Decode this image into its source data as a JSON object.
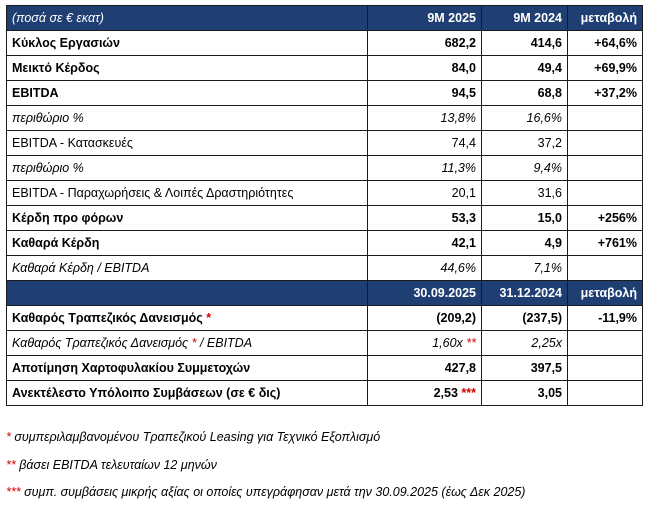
{
  "table1": {
    "header": {
      "label": "(ποσά σε € εκατ)",
      "col1": "9M 2025",
      "col2": "9M 2024",
      "col3": "μεταβολή"
    },
    "rows": [
      {
        "label": "Κύκλος Εργασιών",
        "v1": "682,2",
        "v2": "414,6",
        "chg": "+64,6%",
        "style": "bold"
      },
      {
        "label": "Μεικτό Κέρδος",
        "v1": "84,0",
        "v2": "49,4",
        "chg": "+69,9%",
        "style": "bold"
      },
      {
        "label": "EBITDA",
        "v1": "94,5",
        "v2": "68,8",
        "chg": "+37,2%",
        "style": "bold"
      },
      {
        "label": "περιθώριο %",
        "v1": "13,8%",
        "v2": "16,6%",
        "chg": "",
        "style": "ital"
      },
      {
        "label": "EBITDA - Κατασκευές",
        "v1": "74,4",
        "v2": "37,2",
        "chg": "",
        "style": "normal"
      },
      {
        "label": "περιθώριο %",
        "v1": "11,3%",
        "v2": "9,4%",
        "chg": "",
        "style": "ital"
      },
      {
        "label": "EBITDA - Παραχωρήσεις & Λοιπές Δραστηριότητες",
        "v1": "20,1",
        "v2": "31,6",
        "chg": "",
        "style": "normal"
      },
      {
        "label": "Κέρδη προ φόρων",
        "v1": "53,3",
        "v2": "15,0",
        "chg": "+256%",
        "style": "bold"
      },
      {
        "label": "Καθαρά Κέρδη",
        "v1": "42,1",
        "v2": "4,9",
        "chg": "+761%",
        "style": "bold"
      },
      {
        "label": "Καθαρά Κέρδη / EBITDA",
        "v1": "44,6%",
        "v2": "7,1%",
        "chg": "",
        "style": "ital"
      }
    ]
  },
  "table2": {
    "header": {
      "label": "",
      "col1": "30.09.2025",
      "col2": "31.12.2024",
      "col3": "μεταβολή"
    },
    "rows": [
      {
        "label": "Καθαρός Τραπεζικός Δανεισμός",
        "mark": " *",
        "v1": "(209,2)",
        "v1mark": "",
        "v2": "(237,5)",
        "chg": "-11,9%",
        "style": "bold"
      },
      {
        "label": "Καθαρός Τραπεζικός Δανεισμός",
        "mark": " *",
        "label_suffix": " / EBITDA",
        "v1": "1,60x",
        "v1mark": " **",
        "v2": "2,25x",
        "chg": "",
        "style": "ital"
      },
      {
        "label": "Αποτίμηση Χαρτοφυλακίου Συμμετοχών",
        "mark": "",
        "v1": "427,8",
        "v1mark": "",
        "v2": "397,5",
        "chg": "",
        "style": "bold"
      },
      {
        "label": "Ανεκτέλεστο Υπόλοιπο Συμβάσεων (σε € δις)",
        "mark": "",
        "v1": "2,53",
        "v1mark": " ***",
        "v2": "3,05",
        "chg": "",
        "style": "bold"
      }
    ]
  },
  "footnotes": [
    {
      "mark": "*",
      "text": " συμπεριλαμβανομένου Τραπεζικού Leasing για Τεχνικό Εξοπλισμό"
    },
    {
      "mark": "**",
      "text": " βάσει EBITDA τελευταίων 12 μηνών"
    },
    {
      "mark": "***",
      "text": " συμπ. συμβάσεις μικρής αξίας οι οποίες υπεγράφησαν μετά την 30.09.2025 (έως Δεκ 2025)"
    }
  ]
}
